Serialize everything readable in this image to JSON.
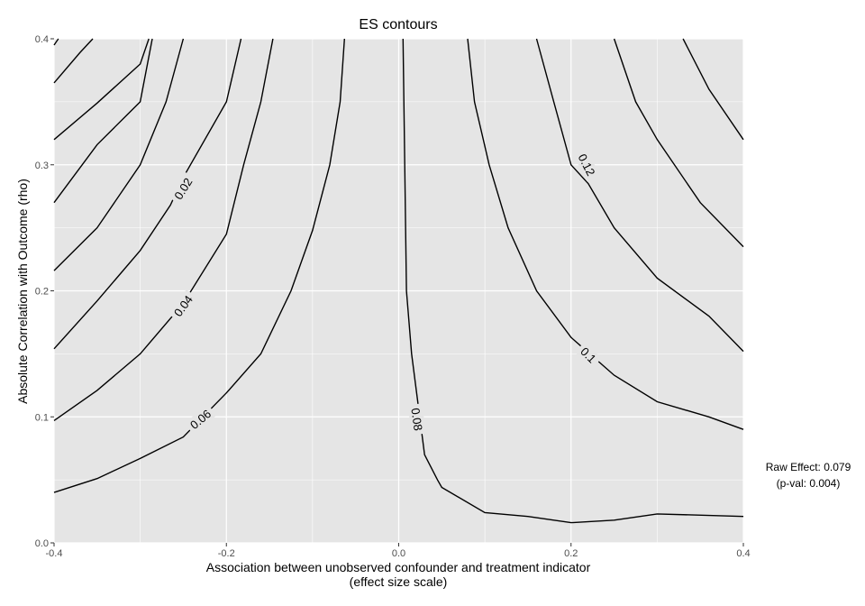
{
  "chart_data": {
    "type": "contour",
    "title": "ES contours",
    "xlabel_line1": "Association between unobserved confounder and treatment indicator",
    "xlabel_line2": "(effect size scale)",
    "ylabel": "Absolute Correlation with Outcome (rho)",
    "xlim": [
      -0.4,
      0.4
    ],
    "ylim": [
      0,
      0.4
    ],
    "x_ticks": [
      -0.4,
      -0.2,
      0.0,
      0.2,
      0.4
    ],
    "x_tick_labels": [
      "-0.4",
      "-0.2",
      "0.0",
      "0.2",
      "0.4"
    ],
    "y_ticks": [
      0,
      0.1,
      0.2,
      0.3,
      0.4
    ],
    "y_tick_labels": [
      "0.0",
      "0.1",
      "0.2",
      "0.3",
      "0.4"
    ],
    "grid": true,
    "panel_background": "#e5e5e5",
    "grid_color": "#ffffff",
    "line_color": "#000000",
    "contours": [
      {
        "level": 0.06,
        "label": "0.06",
        "label_pos": [
          -0.23,
          0.098
        ],
        "label_angle": -40,
        "points": [
          [
            -0.4,
            0.04
          ],
          [
            -0.35,
            0.051
          ],
          [
            -0.3,
            0.067
          ],
          [
            -0.25,
            0.084
          ],
          [
            -0.2,
            0.119
          ],
          [
            -0.16,
            0.15
          ],
          [
            -0.125,
            0.2
          ],
          [
            -0.1,
            0.248
          ],
          [
            -0.08,
            0.3
          ],
          [
            -0.068,
            0.35
          ],
          [
            -0.063,
            0.4
          ]
        ]
      },
      {
        "level": 0.04,
        "label": "0.04",
        "label_pos": [
          -0.25,
          0.188
        ],
        "label_angle": -54,
        "points": [
          [
            -0.4,
            0.097
          ],
          [
            -0.35,
            0.121
          ],
          [
            -0.3,
            0.15
          ],
          [
            -0.25,
            0.19
          ],
          [
            -0.2,
            0.245
          ],
          [
            -0.18,
            0.3
          ],
          [
            -0.16,
            0.35
          ],
          [
            -0.146,
            0.4
          ]
        ]
      },
      {
        "level": 0.02,
        "label": "0.02",
        "label_pos": [
          -0.25,
          0.281
        ],
        "label_angle": -58,
        "points": [
          [
            -0.4,
            0.154
          ],
          [
            -0.35,
            0.192
          ],
          [
            -0.3,
            0.232
          ],
          [
            -0.265,
            0.268
          ],
          [
            -0.25,
            0.29
          ],
          [
            -0.2,
            0.35
          ],
          [
            -0.183,
            0.4
          ]
        ]
      },
      {
        "level": 0,
        "label": "",
        "points": [
          [
            -0.4,
            0.216
          ],
          [
            -0.35,
            0.25
          ],
          [
            -0.3,
            0.3
          ],
          [
            -0.27,
            0.35
          ],
          [
            -0.25,
            0.4
          ]
        ]
      },
      {
        "level": -0.02,
        "label": "",
        "points": [
          [
            -0.4,
            0.27
          ],
          [
            -0.35,
            0.316
          ],
          [
            -0.3,
            0.35
          ],
          [
            -0.286,
            0.4
          ]
        ]
      },
      {
        "level": -0.04,
        "label": "",
        "points": [
          [
            -0.4,
            0.32
          ],
          [
            -0.35,
            0.349
          ],
          [
            -0.3,
            0.38
          ],
          [
            -0.29,
            0.4
          ]
        ]
      },
      {
        "level": -0.06,
        "label": "",
        "points": [
          [
            -0.4,
            0.365
          ],
          [
            -0.37,
            0.389
          ],
          [
            -0.355,
            0.4
          ]
        ]
      },
      {
        "level": -0.08,
        "label": "",
        "points": [
          [
            -0.4,
            0.395
          ],
          [
            -0.395,
            0.4
          ]
        ]
      },
      {
        "level": 0.08,
        "label": "0.08",
        "label_pos": [
          0.021,
          0.098
        ],
        "label_angle": 82,
        "points": [
          [
            0.005,
            0.4
          ],
          [
            0.007,
            0.3
          ],
          [
            0.009,
            0.2
          ],
          [
            0.015,
            0.15
          ],
          [
            0.03,
            0.07
          ],
          [
            0.045,
            0.05
          ],
          [
            0.05,
            0.044
          ],
          [
            0.1,
            0.024
          ],
          [
            0.15,
            0.021
          ],
          [
            0.2,
            0.016
          ],
          [
            0.25,
            0.018
          ],
          [
            0.3,
            0.023
          ],
          [
            0.4,
            0.021
          ]
        ]
      },
      {
        "level": 0.1,
        "label": "0.1",
        "label_pos": [
          0.22,
          0.149
        ],
        "label_angle": 45,
        "points": [
          [
            0.08,
            0.4
          ],
          [
            0.088,
            0.35
          ],
          [
            0.105,
            0.3
          ],
          [
            0.127,
            0.25
          ],
          [
            0.16,
            0.2
          ],
          [
            0.2,
            0.163
          ],
          [
            0.25,
            0.133
          ],
          [
            0.3,
            0.112
          ],
          [
            0.36,
            0.1
          ],
          [
            0.4,
            0.09
          ]
        ]
      },
      {
        "level": 0.12,
        "label": "0.12",
        "label_pos": [
          0.218,
          0.3
        ],
        "label_angle": 63,
        "points": [
          [
            0.16,
            0.4
          ],
          [
            0.18,
            0.35
          ],
          [
            0.2,
            0.3
          ],
          [
            0.22,
            0.285
          ],
          [
            0.25,
            0.25
          ],
          [
            0.3,
            0.21
          ],
          [
            0.36,
            0.18
          ],
          [
            0.4,
            0.152
          ]
        ]
      },
      {
        "level": 0.14,
        "label": "",
        "points": [
          [
            0.25,
            0.4
          ],
          [
            0.275,
            0.35
          ],
          [
            0.3,
            0.32
          ],
          [
            0.35,
            0.27
          ],
          [
            0.4,
            0.235
          ]
        ]
      },
      {
        "level": 0.16,
        "label": "",
        "points": [
          [
            0.33,
            0.4
          ],
          [
            0.36,
            0.36
          ],
          [
            0.4,
            0.32
          ]
        ]
      }
    ]
  },
  "annotation": {
    "line1": "Raw Effect: 0.079",
    "line2": "(p-val: 0.004)"
  }
}
